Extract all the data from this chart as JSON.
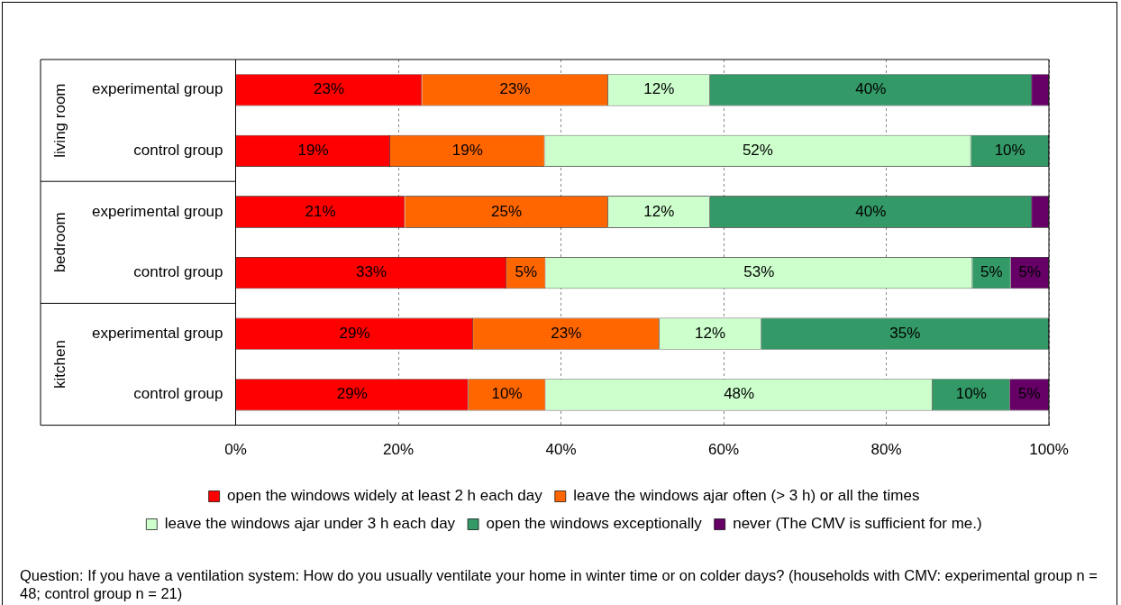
{
  "chart_data": {
    "type": "bar",
    "orientation": "horizontal",
    "stacked": true,
    "categories": [
      "experimental group",
      "control group",
      "experimental group",
      "control group",
      "experimental group",
      "control group"
    ],
    "series": [
      {
        "name": "open the windows widely at least 2 h each day",
        "color": "#ff0000",
        "values": [
          22.9,
          19.0,
          20.8,
          33.3,
          29.2,
          28.6
        ],
        "value_labels": [
          "23%",
          "19%",
          "21%",
          "33%",
          "29%",
          "29%"
        ]
      },
      {
        "name": "leave the windows ajar often (> 3 h) or all the times",
        "color": "#ff6600",
        "values": [
          22.9,
          19.0,
          25.0,
          4.8,
          22.9,
          9.5
        ],
        "value_labels": [
          "23%",
          "19%",
          "25%",
          "5%",
          "23%",
          "10%"
        ]
      },
      {
        "name": "leave the windows ajar under 3 h each day",
        "color": "#ccffcc",
        "values": [
          12.5,
          52.4,
          12.5,
          52.5,
          12.5,
          47.6
        ],
        "value_labels": [
          "12%",
          "52%",
          "12%",
          "53%",
          "12%",
          "48%"
        ]
      },
      {
        "name": "open the windows exceptionally",
        "color": "#339966",
        "values": [
          39.6,
          9.6,
          39.6,
          4.7,
          35.4,
          9.5
        ],
        "value_labels": [
          "40%",
          "10%",
          "40%",
          "5%",
          "35%",
          "10%"
        ]
      },
      {
        "name": "never (The CMV is sufficient for me.)",
        "color": "#660066",
        "values": [
          2.1,
          0,
          2.1,
          4.7,
          0,
          4.8
        ],
        "value_labels": [
          null,
          null,
          null,
          "5%",
          null,
          "5%"
        ]
      }
    ],
    "xlim": [
      0,
      100
    ],
    "xticks": [
      {
        "value": 0,
        "label": "0%"
      },
      {
        "value": 20,
        "label": "20%"
      },
      {
        "value": 40,
        "label": "40%"
      },
      {
        "value": 60,
        "label": "60%"
      },
      {
        "value": 80,
        "label": "80%"
      },
      {
        "value": 100,
        "label": "100%"
      }
    ],
    "grid": "x",
    "legend": "bottom",
    "annotations": [
      "living room",
      "bedroom",
      "kitchen",
      "Question: If you have a ventilation system: How do you usually ventilate your home in winter time or on colder days? (households with CMV: experimental group n = 48; control group n = 21)"
    ]
  }
}
